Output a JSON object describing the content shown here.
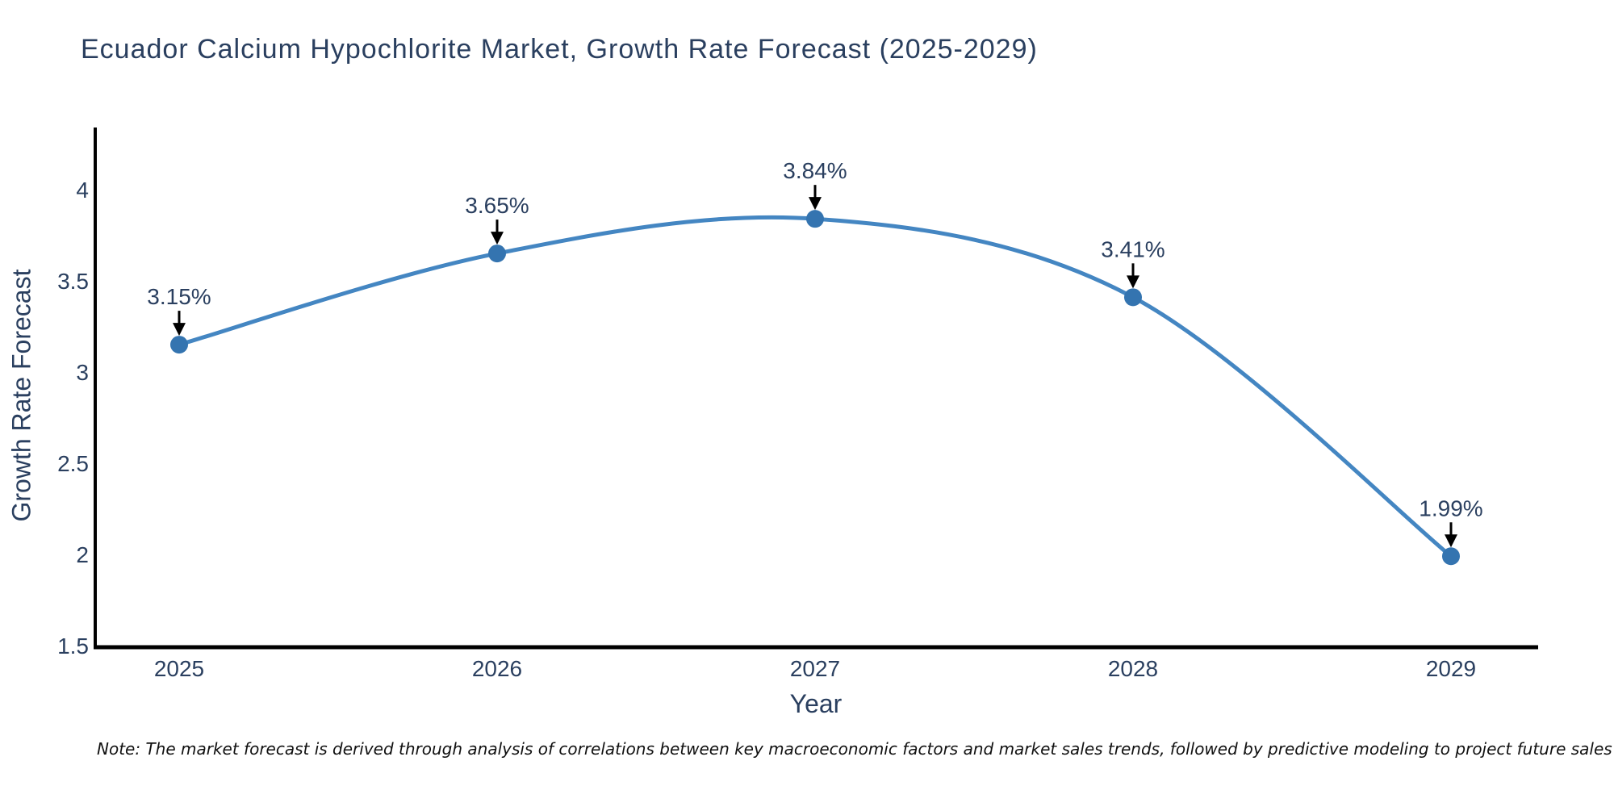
{
  "chart_data": {
    "type": "line",
    "title": "Ecuador Calcium Hypochlorite Market, Growth Rate Forecast (2025-2029)",
    "xlabel": "Year",
    "ylabel": "Growth Rate Forecast",
    "x": [
      "2025",
      "2026",
      "2027",
      "2028",
      "2029"
    ],
    "values": [
      3.15,
      3.65,
      3.84,
      3.41,
      1.99
    ],
    "labels": [
      "3.15%",
      "3.65%",
      "3.84%",
      "3.41%",
      "1.99%"
    ],
    "y_ticks": [
      {
        "value": 1.5,
        "label": "1.5"
      },
      {
        "value": 2,
        "label": "2"
      },
      {
        "value": 2.5,
        "label": "2.5"
      },
      {
        "value": 3,
        "label": "3"
      },
      {
        "value": 3.5,
        "label": "3.5"
      },
      {
        "value": 4,
        "label": "4"
      }
    ],
    "ylim": [
      1.5,
      4.35
    ],
    "line_shape": "spline",
    "grid": false,
    "legend": false,
    "annotation_style": "value label with black arrow pointing down at marker",
    "note": "Note: The market forecast is derived through analysis of correlations between key macroeconomic factors and market sales trends, followed by predictive modeling to project future sales",
    "colors": {
      "line": "#4486c2",
      "marker": "#3474b0",
      "axis": "#000000",
      "text": "#2a3f5f",
      "arrow": "#000000",
      "note_text": "#111111",
      "background": "#ffffff"
    }
  }
}
